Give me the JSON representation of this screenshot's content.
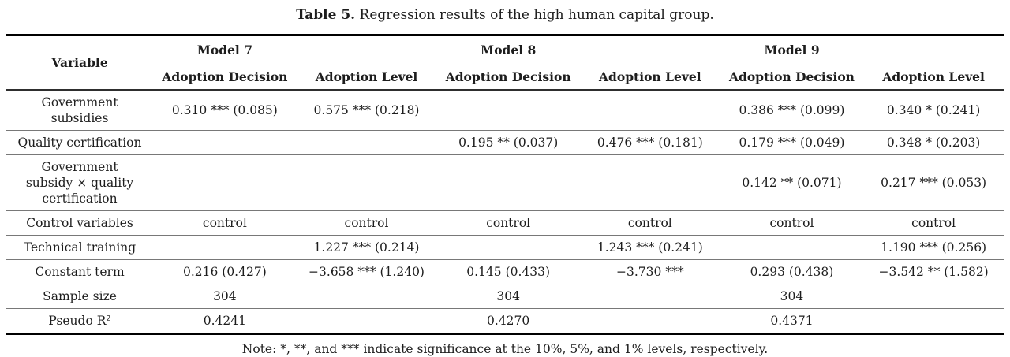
{
  "title": {
    "label": "Table 5.",
    "text": " Regression results of the high human capital group."
  },
  "table": {
    "variable_header": "Variable",
    "models": [
      {
        "name": "Model 7",
        "sub_columns": [
          "Adoption Decision",
          "Adoption Level"
        ]
      },
      {
        "name": "Model 8",
        "sub_columns": [
          "Adoption Decision",
          "Adoption Level"
        ]
      },
      {
        "name": "Model 9",
        "sub_columns": [
          "Adoption Decision",
          "Adoption Level"
        ]
      }
    ],
    "rows": [
      {
        "label": "Government\nsubsidies",
        "cells": [
          "0.310 *** (0.085)",
          "0.575 *** (0.218)",
          "",
          "",
          "0.386 *** (0.099)",
          "0.340 * (0.241)"
        ]
      },
      {
        "label": "Quality certification",
        "cells": [
          "",
          "",
          "0.195 ** (0.037)",
          "0.476 *** (0.181)",
          "0.179 *** (0.049)",
          "0.348 * (0.203)"
        ]
      },
      {
        "label": "Government\nsubsidy × quality\ncertification",
        "cells": [
          "",
          "",
          "",
          "",
          "0.142 ** (0.071)",
          "0.217 *** (0.053)"
        ]
      },
      {
        "label": "Control variables",
        "cells": [
          "control",
          "control",
          "control",
          "control",
          "control",
          "control"
        ]
      },
      {
        "label": "Technical training",
        "cells": [
          "",
          "1.227 *** (0.214)",
          "",
          "1.243 *** (0.241)",
          "",
          "1.190 *** (0.256)"
        ]
      },
      {
        "label": "Constant term",
        "cells": [
          "0.216 (0.427)",
          "−3.658 *** (1.240)",
          "0.145 (0.433)",
          "−3.730 ***",
          "0.293 (0.438)",
          "−3.542 ** (1.582)"
        ]
      },
      {
        "label": "Sample size",
        "cells": [
          "304",
          "",
          "304",
          "",
          "304",
          ""
        ]
      },
      {
        "label": "Pseudo R²",
        "cells": [
          "0.4241",
          "",
          "0.4270",
          "",
          "0.4371",
          ""
        ]
      }
    ]
  },
  "note": "Note: *, **, and *** indicate significance at the 10%, 5%, and 1% levels, respectively."
}
